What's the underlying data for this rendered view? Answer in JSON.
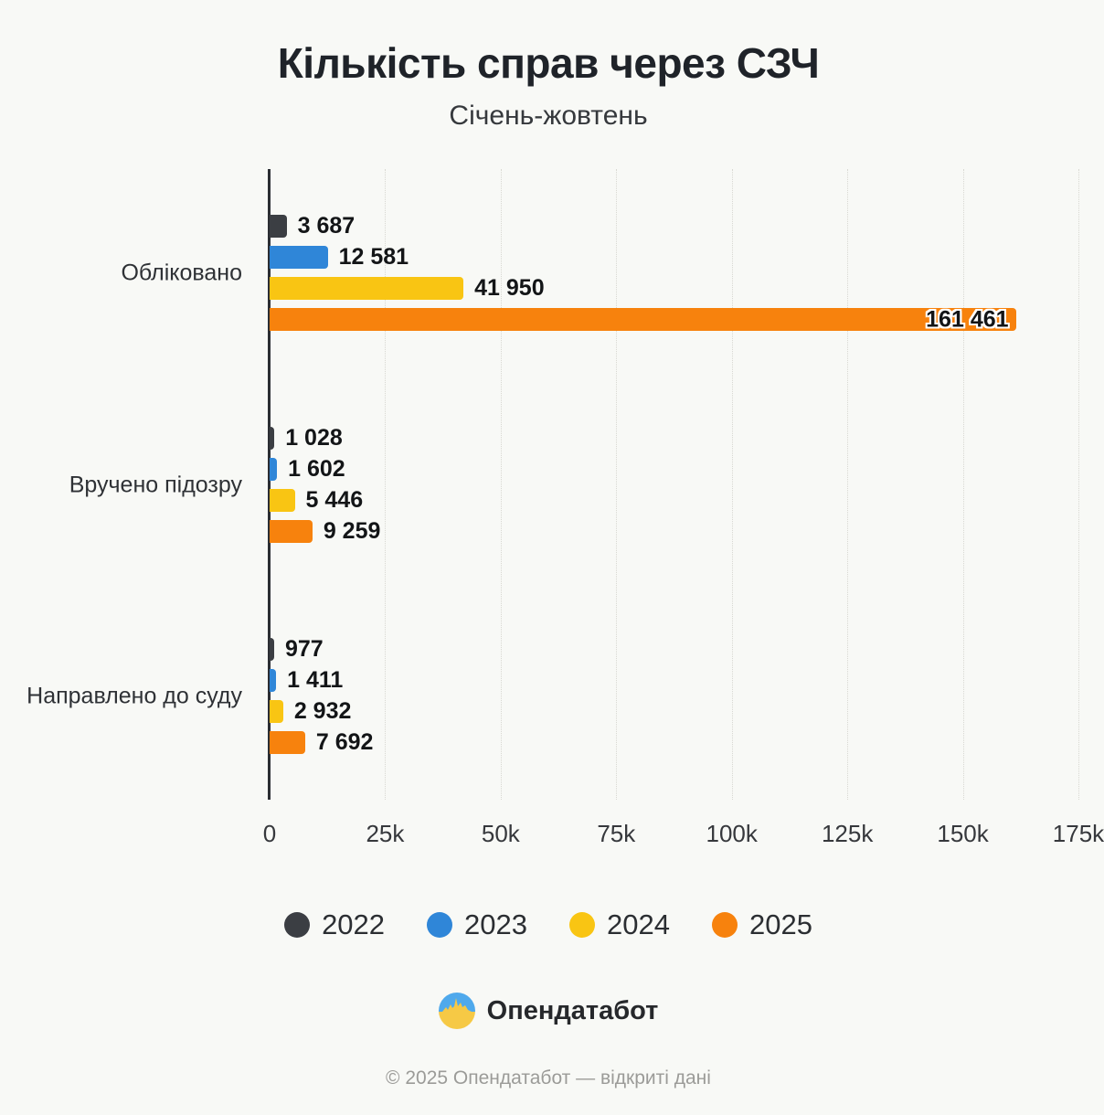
{
  "title": "Кількість справ через СЗЧ",
  "subtitle": "Січень-жовтень",
  "chart_data": {
    "type": "bar",
    "orientation": "horizontal",
    "title": "Кількість справ через СЗЧ",
    "subtitle": "Січень-жовтень",
    "categories": [
      "Обліковано",
      "Вручено підозру",
      "Направлено до суду"
    ],
    "series": [
      {
        "name": "2022",
        "color": "#3b3e43",
        "values": [
          3687,
          1028,
          977
        ],
        "labels": [
          "3 687",
          "1 028",
          "977"
        ]
      },
      {
        "name": "2023",
        "color": "#2f86d8",
        "values": [
          12581,
          1602,
          1411
        ],
        "labels": [
          "12 581",
          "1 602",
          "1 411"
        ]
      },
      {
        "name": "2024",
        "color": "#f9c513",
        "values": [
          41950,
          5446,
          2932
        ],
        "labels": [
          "41 950",
          "5 446",
          "2 932"
        ]
      },
      {
        "name": "2025",
        "color": "#f7820d",
        "values": [
          161461,
          9259,
          7692
        ],
        "labels": [
          "161 461",
          "9 259",
          "7 692"
        ]
      }
    ],
    "xlim": [
      0,
      175000
    ],
    "x_ticks": [
      {
        "value": 0,
        "label": "0"
      },
      {
        "value": 25000,
        "label": "25k"
      },
      {
        "value": 50000,
        "label": "50k"
      },
      {
        "value": 75000,
        "label": "75k"
      },
      {
        "value": 100000,
        "label": "100k"
      },
      {
        "value": 125000,
        "label": "125k"
      },
      {
        "value": 150000,
        "label": "150k"
      },
      {
        "value": 175000,
        "label": "175k"
      }
    ],
    "grid": "vertical-dotted",
    "legend_position": "bottom"
  },
  "legend": [
    {
      "label": "2022",
      "color": "#3b3e43"
    },
    {
      "label": "2023",
      "color": "#2f86d8"
    },
    {
      "label": "2024",
      "color": "#f9c513"
    },
    {
      "label": "2025",
      "color": "#f7820d"
    }
  ],
  "brand": {
    "name": "Опендатабот",
    "logo": "opendatabot-logo-icon"
  },
  "footer": {
    "copyright": "© 2025 Опендатабот — відкриті дані"
  }
}
